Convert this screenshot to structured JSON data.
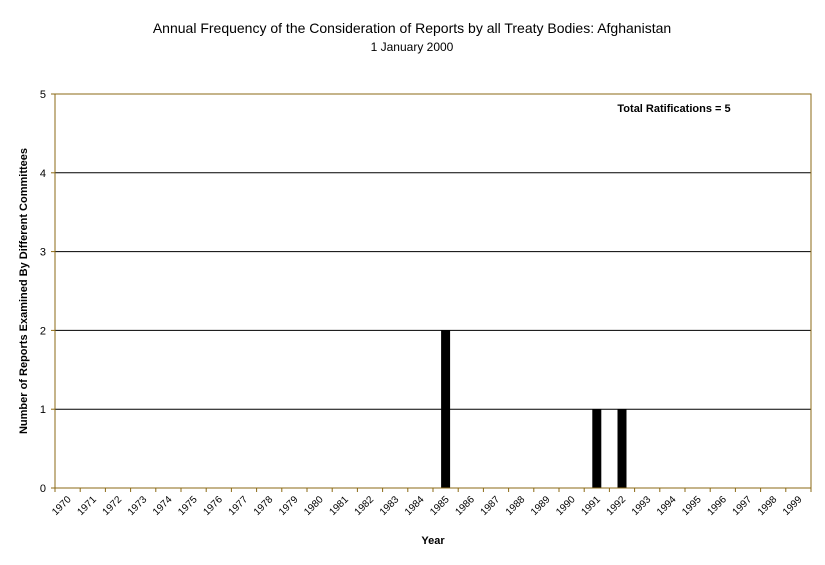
{
  "chart_data": {
    "type": "bar",
    "title": "Annual Frequency of the Consideration of Reports by all Treaty Bodies: Afghanistan",
    "subtitle": "1 January 2000",
    "xlabel": "Year",
    "ylabel": "Number of Reports Examined By Different Committees",
    "annotation": "Total Ratifications = 5",
    "categories": [
      "1970",
      "1971",
      "1972",
      "1973",
      "1974",
      "1975",
      "1976",
      "1977",
      "1978",
      "1979",
      "1980",
      "1981",
      "1982",
      "1983",
      "1984",
      "1985",
      "1986",
      "1987",
      "1988",
      "1989",
      "1990",
      "1991",
      "1992",
      "1993",
      "1994",
      "1995",
      "1996",
      "1997",
      "1998",
      "1999"
    ],
    "values": [
      0,
      0,
      0,
      0,
      0,
      0,
      0,
      0,
      0,
      0,
      0,
      0,
      0,
      0,
      0,
      2,
      0,
      0,
      0,
      0,
      0,
      1,
      1,
      0,
      0,
      0,
      0,
      0,
      0,
      0
    ],
    "ylim": [
      0,
      5
    ],
    "yticks": [
      0,
      1,
      2,
      3,
      4,
      5
    ],
    "grid": true,
    "colors": {
      "bar": "#000000",
      "frame": "#8b6914",
      "grid": "#000000"
    }
  }
}
